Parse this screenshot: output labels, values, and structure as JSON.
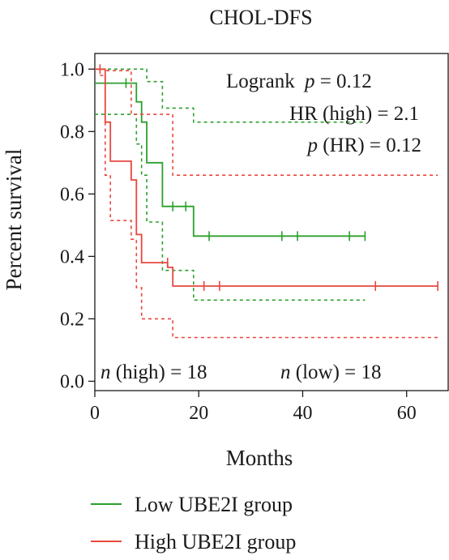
{
  "chart_data": {
    "type": "line",
    "subtype": "kaplan-meier",
    "title": "CHOL-DFS",
    "xlabel": "Months",
    "ylabel": "Percent survival",
    "xlim": [
      0,
      68
    ],
    "ylim": [
      -0.03,
      1.05
    ],
    "xticks": [
      0,
      20,
      40,
      60
    ],
    "yticks": [
      0.0,
      0.2,
      0.4,
      0.6,
      0.8,
      1.0
    ],
    "ytick_labels": [
      "0.0",
      "0.2",
      "0.4",
      "0.6",
      "0.8",
      "1.0"
    ],
    "grid": false,
    "legend_position": "bottom",
    "series": [
      {
        "name": "Low UBE2I group",
        "color": "#2ca02c",
        "steps": [
          [
            0,
            0.955
          ],
          [
            8,
            0.955
          ],
          [
            8,
            0.895
          ],
          [
            9,
            0.895
          ],
          [
            9,
            0.83
          ],
          [
            10,
            0.83
          ],
          [
            10,
            0.7
          ],
          [
            13,
            0.7
          ],
          [
            13,
            0.56
          ],
          [
            19,
            0.56
          ],
          [
            19,
            0.465
          ],
          [
            52,
            0.465
          ]
        ],
        "censored": [
          [
            6,
            0.955
          ],
          [
            15,
            0.56
          ],
          [
            17.5,
            0.56
          ],
          [
            22,
            0.465
          ],
          [
            36,
            0.465
          ],
          [
            39,
            0.465
          ],
          [
            49,
            0.465
          ],
          [
            52,
            0.465
          ]
        ],
        "ci_upper": [
          [
            0,
            1.0
          ],
          [
            8,
            1.0
          ],
          [
            8,
            1.0
          ],
          [
            10,
            1.0
          ],
          [
            10,
            0.96
          ],
          [
            13,
            0.96
          ],
          [
            13,
            0.875
          ],
          [
            19,
            0.875
          ],
          [
            19,
            0.83
          ],
          [
            52,
            0.83
          ]
        ],
        "ci_lower": [
          [
            0,
            0.855
          ],
          [
            8,
            0.855
          ],
          [
            8,
            0.76
          ],
          [
            9,
            0.76
          ],
          [
            9,
            0.66
          ],
          [
            10,
            0.66
          ],
          [
            10,
            0.51
          ],
          [
            13,
            0.51
          ],
          [
            13,
            0.355
          ],
          [
            19,
            0.355
          ],
          [
            19,
            0.26
          ],
          [
            52,
            0.26
          ]
        ]
      },
      {
        "name": "High UBE2I group",
        "color": "#e8473e",
        "steps": [
          [
            0,
            1.0
          ],
          [
            2,
            1.0
          ],
          [
            2,
            0.83
          ],
          [
            3,
            0.83
          ],
          [
            3,
            0.705
          ],
          [
            7,
            0.705
          ],
          [
            7,
            0.645
          ],
          [
            8,
            0.645
          ],
          [
            8,
            0.47
          ],
          [
            9,
            0.47
          ],
          [
            9,
            0.38
          ],
          [
            14,
            0.38
          ],
          [
            14,
            0.365
          ],
          [
            15,
            0.365
          ],
          [
            15,
            0.305
          ],
          [
            66,
            0.305
          ]
        ],
        "censored": [
          [
            1,
            1.0
          ],
          [
            14,
            0.38
          ],
          [
            21,
            0.305
          ],
          [
            24,
            0.305
          ],
          [
            54,
            0.305
          ],
          [
            66,
            0.305
          ]
        ],
        "ci_upper": [
          [
            0,
            1.0
          ],
          [
            2,
            1.0
          ],
          [
            2,
            0.995
          ],
          [
            7,
            0.995
          ],
          [
            7,
            0.855
          ],
          [
            15,
            0.855
          ],
          [
            15,
            0.66
          ],
          [
            66,
            0.66
          ]
        ],
        "ci_lower": [
          [
            1,
            0.98
          ],
          [
            2,
            0.98
          ],
          [
            2,
            0.66
          ],
          [
            3,
            0.66
          ],
          [
            3,
            0.515
          ],
          [
            7,
            0.515
          ],
          [
            7,
            0.455
          ],
          [
            8,
            0.455
          ],
          [
            8,
            0.3
          ],
          [
            9,
            0.3
          ],
          [
            9,
            0.2
          ],
          [
            15,
            0.2
          ],
          [
            15,
            0.14
          ],
          [
            66,
            0.14
          ]
        ]
      }
    ],
    "annotations": {
      "logrank_label": "Logrank",
      "logrank_p": "p = 0.12",
      "hr": "HR (high) = 2.1",
      "p_hr": "p (HR) = 0.12",
      "n_high": "n (high) = 18",
      "n_low": "n (low) = 18"
    }
  }
}
